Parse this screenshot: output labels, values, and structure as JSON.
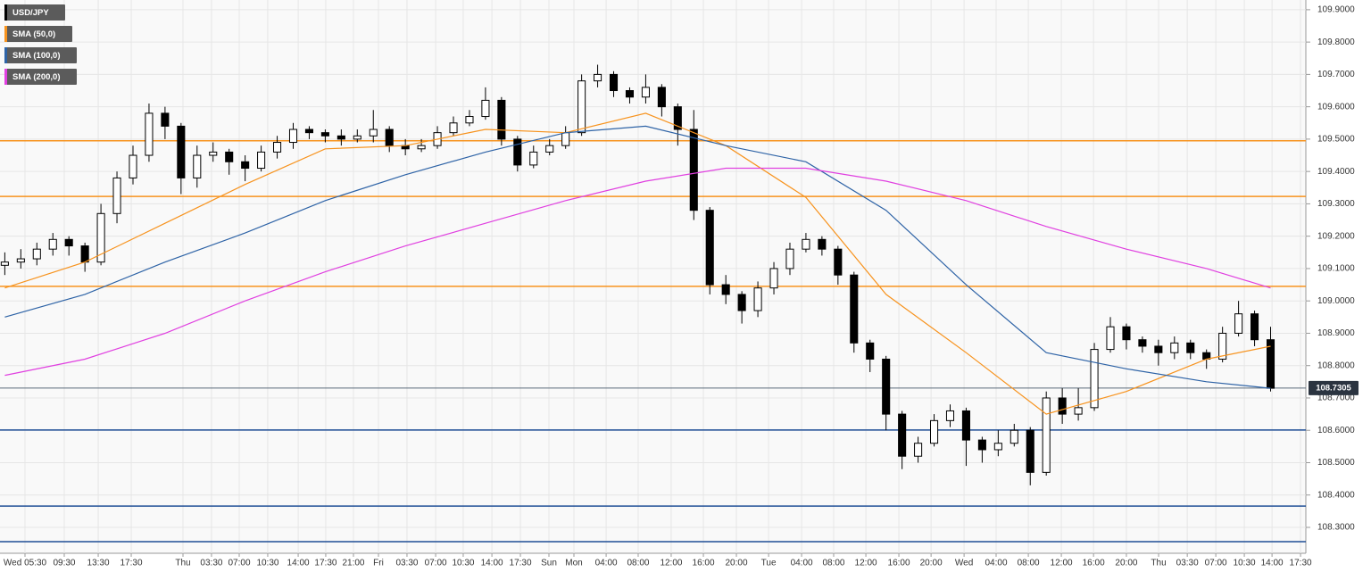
{
  "chart_data": {
    "type": "candlestick",
    "name": "USD/JPY",
    "color": "#000000",
    "open": [
      109.11,
      109.12,
      109.13,
      109.16,
      109.19,
      109.17,
      109.12,
      109.27,
      109.38,
      109.45,
      109.58,
      109.54,
      109.38,
      109.45,
      109.46,
      109.43,
      109.41,
      109.46,
      109.49,
      109.53,
      109.52,
      109.51,
      109.5,
      109.51,
      109.53,
      109.48,
      109.47,
      109.48,
      109.52,
      109.55,
      109.57,
      109.62,
      109.5,
      109.42,
      109.46,
      109.48,
      109.52,
      109.68,
      109.7,
      109.65,
      109.63,
      109.66,
      109.6,
      109.53,
      109.28,
      109.05,
      109.02,
      108.97,
      109.04,
      109.1,
      109.16,
      109.19,
      109.16,
      109.08,
      108.87,
      108.82,
      108.65,
      108.52,
      108.56,
      108.63,
      108.66,
      108.57,
      108.54,
      108.56,
      108.6,
      108.47,
      108.7,
      108.65,
      108.67,
      108.85,
      108.92,
      108.88,
      108.86,
      108.84,
      108.87,
      108.84,
      108.82,
      108.9,
      108.96,
      108.88
    ],
    "high": [
      109.15,
      109.16,
      109.18,
      109.21,
      109.2,
      109.18,
      109.3,
      109.4,
      109.48,
      109.61,
      109.6,
      109.55,
      109.48,
      109.49,
      109.47,
      109.45,
      109.48,
      109.51,
      109.55,
      109.54,
      109.53,
      109.53,
      109.53,
      109.59,
      109.54,
      109.5,
      109.5,
      109.54,
      109.57,
      109.59,
      109.66,
      109.63,
      109.51,
      109.48,
      109.5,
      109.54,
      109.7,
      109.73,
      109.71,
      109.66,
      109.7,
      109.67,
      109.61,
      109.59,
      109.29,
      109.08,
      109.03,
      109.06,
      109.12,
      109.18,
      109.21,
      109.2,
      109.17,
      109.09,
      108.88,
      108.83,
      108.66,
      108.58,
      108.65,
      108.68,
      108.67,
      108.58,
      108.6,
      108.62,
      108.61,
      108.72,
      108.73,
      108.73,
      108.87,
      108.95,
      108.93,
      108.89,
      108.88,
      108.89,
      108.88,
      108.85,
      108.92,
      109.0,
      108.97,
      108.92
    ],
    "low": [
      109.08,
      109.1,
      109.11,
      109.14,
      109.14,
      109.09,
      109.11,
      109.24,
      109.36,
      109.43,
      109.5,
      109.33,
      109.35,
      109.43,
      109.39,
      109.37,
      109.4,
      109.44,
      109.47,
      109.5,
      109.49,
      109.48,
      109.49,
      109.49,
      109.46,
      109.45,
      109.46,
      109.47,
      109.51,
      109.54,
      109.56,
      109.48,
      109.4,
      109.41,
      109.45,
      109.47,
      109.51,
      109.66,
      109.63,
      109.61,
      109.61,
      109.57,
      109.48,
      109.25,
      109.02,
      108.99,
      108.93,
      108.95,
      109.02,
      109.08,
      109.15,
      109.14,
      109.05,
      108.84,
      108.78,
      108.6,
      108.48,
      108.5,
      108.55,
      108.61,
      108.49,
      108.5,
      108.52,
      108.55,
      108.43,
      108.46,
      108.62,
      108.63,
      108.66,
      108.84,
      108.85,
      108.84,
      108.8,
      108.82,
      108.82,
      108.79,
      108.81,
      108.89,
      108.86,
      108.72
    ],
    "close": [
      109.12,
      109.13,
      109.16,
      109.19,
      109.17,
      109.12,
      109.27,
      109.38,
      109.45,
      109.58,
      109.54,
      109.38,
      109.45,
      109.46,
      109.43,
      109.41,
      109.46,
      109.49,
      109.53,
      109.52,
      109.51,
      109.5,
      109.51,
      109.53,
      109.48,
      109.47,
      109.48,
      109.52,
      109.55,
      109.57,
      109.62,
      109.5,
      109.42,
      109.46,
      109.48,
      109.52,
      109.68,
      109.7,
      109.65,
      109.63,
      109.66,
      109.6,
      109.53,
      109.28,
      109.05,
      109.02,
      108.97,
      109.04,
      109.1,
      109.16,
      109.19,
      109.16,
      109.08,
      108.87,
      108.82,
      108.65,
      108.52,
      108.56,
      108.63,
      108.66,
      108.57,
      108.54,
      108.56,
      108.6,
      108.47,
      108.7,
      108.65,
      108.67,
      108.85,
      108.92,
      108.88,
      108.86,
      108.84,
      108.87,
      108.84,
      108.82,
      108.9,
      108.96,
      108.88,
      108.73
    ],
    "series": [
      {
        "name": "SMA (50,0)",
        "color": "#f7931e",
        "x": [
          0,
          5,
          10,
          15,
          20,
          25,
          30,
          35,
          40,
          45,
          50,
          55,
          60,
          65,
          70,
          75,
          79
        ],
        "values": [
          109.04,
          109.12,
          109.24,
          109.36,
          109.47,
          109.48,
          109.53,
          109.52,
          109.58,
          109.48,
          109.32,
          109.02,
          108.84,
          108.65,
          108.72,
          108.82,
          108.86
        ]
      },
      {
        "name": "SMA (100,0)",
        "color": "#2e63a6",
        "x": [
          0,
          5,
          10,
          15,
          20,
          25,
          30,
          35,
          40,
          45,
          50,
          55,
          60,
          65,
          70,
          75,
          79
        ],
        "values": [
          108.95,
          109.02,
          109.12,
          109.21,
          109.31,
          109.39,
          109.46,
          109.52,
          109.54,
          109.48,
          109.43,
          109.28,
          109.05,
          108.84,
          108.79,
          108.75,
          108.73
        ]
      },
      {
        "name": "SMA (200,0)",
        "color": "#e040e0",
        "x": [
          0,
          5,
          10,
          15,
          20,
          25,
          30,
          35,
          40,
          45,
          50,
          55,
          60,
          65,
          70,
          75,
          79
        ],
        "values": [
          108.77,
          108.82,
          108.9,
          109.0,
          109.09,
          109.17,
          109.24,
          109.31,
          109.37,
          109.41,
          109.41,
          109.37,
          109.31,
          109.23,
          109.16,
          109.1,
          109.04
        ]
      }
    ],
    "levels": [
      {
        "value": 109.495,
        "color": "#f7931e"
      },
      {
        "value": 109.323,
        "color": "#f7931e"
      },
      {
        "value": 109.045,
        "color": "#f7931e"
      },
      {
        "value": 108.601,
        "color": "#1f4e96"
      },
      {
        "value": 108.366,
        "color": "#1f4e96"
      },
      {
        "value": 108.256,
        "color": "#1f4e96"
      }
    ],
    "last_price": 108.7305,
    "ylim": [
      108.22,
      109.93
    ],
    "yticks": [
      {
        "value": 108.3,
        "label": "108.3000"
      },
      {
        "value": 108.4,
        "label": "108.4000"
      },
      {
        "value": 108.5,
        "label": "108.5000"
      },
      {
        "value": 108.6,
        "label": "108.6000"
      },
      {
        "value": 108.7,
        "label": "108.7000"
      },
      {
        "value": 108.8,
        "label": "108.8000"
      },
      {
        "value": 108.9,
        "label": "108.9000"
      },
      {
        "value": 109.0,
        "label": "109.0000"
      },
      {
        "value": 109.1,
        "label": "109.1000"
      },
      {
        "value": 109.2,
        "label": "109.2000"
      },
      {
        "value": 109.3,
        "label": "109.3000"
      },
      {
        "value": 109.4,
        "label": "109.4000"
      },
      {
        "value": 109.5,
        "label": "109.5000"
      },
      {
        "value": 109.6,
        "label": "109.6000"
      },
      {
        "value": 109.7,
        "label": "109.7000"
      },
      {
        "value": 109.8,
        "label": "109.8000"
      },
      {
        "value": 109.9,
        "label": "109.9000"
      }
    ],
    "xlim": [
      -0.3,
      81.2
    ],
    "xticks": [
      {
        "value": 1.26,
        "label": "Wed 05:30"
      },
      {
        "value": 3.71,
        "label": "09:30"
      },
      {
        "value": 5.83,
        "label": "13:30"
      },
      {
        "value": 7.89,
        "label": "17:30"
      },
      {
        "value": 11.12,
        "label": "Thu"
      },
      {
        "value": 12.9,
        "label": "03:30"
      },
      {
        "value": 14.63,
        "label": "07:00"
      },
      {
        "value": 16.41,
        "label": "10:30"
      },
      {
        "value": 18.31,
        "label": "14:00"
      },
      {
        "value": 20.03,
        "label": "17:30"
      },
      {
        "value": 21.76,
        "label": "21:00"
      },
      {
        "value": 23.32,
        "label": "Fri"
      },
      {
        "value": 25.1,
        "label": "03:30"
      },
      {
        "value": 26.89,
        "label": "07:00"
      },
      {
        "value": 28.61,
        "label": "10:30"
      },
      {
        "value": 30.4,
        "label": "14:00"
      },
      {
        "value": 32.18,
        "label": "17:30"
      },
      {
        "value": 33.96,
        "label": "Sun"
      },
      {
        "value": 35.52,
        "label": "Mon"
      },
      {
        "value": 37.53,
        "label": "04:00"
      },
      {
        "value": 39.53,
        "label": "08:00"
      },
      {
        "value": 41.59,
        "label": "12:00"
      },
      {
        "value": 43.6,
        "label": "16:00"
      },
      {
        "value": 45.66,
        "label": "20:00"
      },
      {
        "value": 47.67,
        "label": "Tue"
      },
      {
        "value": 49.73,
        "label": "04:00"
      },
      {
        "value": 51.73,
        "label": "08:00"
      },
      {
        "value": 53.74,
        "label": "12:00"
      },
      {
        "value": 55.8,
        "label": "16:00"
      },
      {
        "value": 57.81,
        "label": "20:00"
      },
      {
        "value": 59.87,
        "label": "Wed"
      },
      {
        "value": 61.87,
        "label": "04:00"
      },
      {
        "value": 63.88,
        "label": "08:00"
      },
      {
        "value": 65.94,
        "label": "12:00"
      },
      {
        "value": 67.95,
        "label": "16:00"
      },
      {
        "value": 70.0,
        "label": "20:00"
      },
      {
        "value": 72.01,
        "label": "Thu"
      },
      {
        "value": 73.8,
        "label": "03:30"
      },
      {
        "value": 75.58,
        "label": "07:00"
      },
      {
        "value": 77.36,
        "label": "10:30"
      },
      {
        "value": 79.09,
        "label": "14:00"
      },
      {
        "value": 80.87,
        "label": "17:30"
      }
    ],
    "grid": true
  }
}
